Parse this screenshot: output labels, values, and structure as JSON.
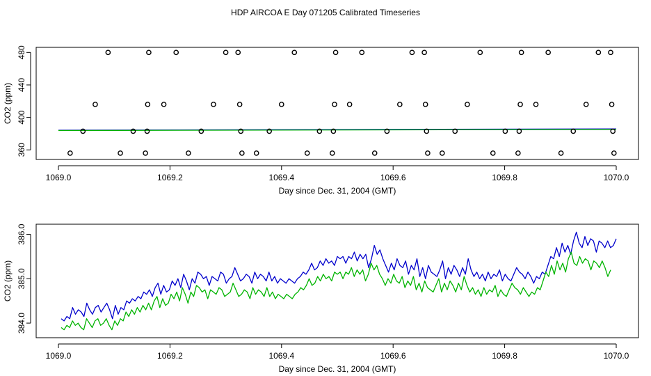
{
  "title": "HDP AIRCOA E  Day 071205  Calibrated Timeseries",
  "colors": {
    "blue": "#0000cc",
    "green": "#00b400",
    "axis": "#000000",
    "marker": "#000000"
  },
  "chart_data": [
    {
      "type": "scatter",
      "name": "upper-panel",
      "xlabel": "Day since Dec. 31, 2004 (GMT)",
      "ylabel": "CO2 (ppm)",
      "xlim": [
        1069.0,
        1070.0
      ],
      "ylim": [
        352.5,
        482.0
      ],
      "xticks": [
        1069.0,
        1069.2,
        1069.4,
        1069.6,
        1069.8,
        1070.0
      ],
      "xtick_labels": [
        "1069.0",
        "1069.2",
        "1069.4",
        "1069.6",
        "1069.8",
        "1070.0"
      ],
      "yticks": [
        360,
        400,
        440,
        480
      ],
      "ytick_labels": [
        "360",
        "400",
        "440",
        "480"
      ],
      "points": [
        {
          "x": 1069.021,
          "y": 356
        },
        {
          "x": 1069.044,
          "y": 383
        },
        {
          "x": 1069.066,
          "y": 416
        },
        {
          "x": 1069.089,
          "y": 480
        },
        {
          "x": 1069.111,
          "y": 356
        },
        {
          "x": 1069.134,
          "y": 383
        },
        {
          "x": 1069.156,
          "y": 356
        },
        {
          "x": 1069.159,
          "y": 383
        },
        {
          "x": 1069.16,
          "y": 416
        },
        {
          "x": 1069.162,
          "y": 480
        },
        {
          "x": 1069.189,
          "y": 416
        },
        {
          "x": 1069.211,
          "y": 480
        },
        {
          "x": 1069.233,
          "y": 356
        },
        {
          "x": 1069.256,
          "y": 383
        },
        {
          "x": 1069.278,
          "y": 416
        },
        {
          "x": 1069.3,
          "y": 480
        },
        {
          "x": 1069.322,
          "y": 480
        },
        {
          "x": 1069.325,
          "y": 416
        },
        {
          "x": 1069.327,
          "y": 383
        },
        {
          "x": 1069.329,
          "y": 356
        },
        {
          "x": 1069.355,
          "y": 356
        },
        {
          "x": 1069.378,
          "y": 383
        },
        {
          "x": 1069.4,
          "y": 416
        },
        {
          "x": 1069.423,
          "y": 480
        },
        {
          "x": 1069.446,
          "y": 356
        },
        {
          "x": 1069.468,
          "y": 383
        },
        {
          "x": 1069.491,
          "y": 356
        },
        {
          "x": 1069.493,
          "y": 383
        },
        {
          "x": 1069.495,
          "y": 416
        },
        {
          "x": 1069.497,
          "y": 480
        },
        {
          "x": 1069.522,
          "y": 416
        },
        {
          "x": 1069.544,
          "y": 480
        },
        {
          "x": 1069.567,
          "y": 356
        },
        {
          "x": 1069.589,
          "y": 383
        },
        {
          "x": 1069.612,
          "y": 416
        },
        {
          "x": 1069.634,
          "y": 480
        },
        {
          "x": 1069.656,
          "y": 480
        },
        {
          "x": 1069.658,
          "y": 416
        },
        {
          "x": 1069.66,
          "y": 383
        },
        {
          "x": 1069.662,
          "y": 356
        },
        {
          "x": 1069.688,
          "y": 356
        },
        {
          "x": 1069.711,
          "y": 383
        },
        {
          "x": 1069.733,
          "y": 416
        },
        {
          "x": 1069.756,
          "y": 480
        },
        {
          "x": 1069.779,
          "y": 356
        },
        {
          "x": 1069.801,
          "y": 383
        },
        {
          "x": 1069.824,
          "y": 356
        },
        {
          "x": 1069.826,
          "y": 383
        },
        {
          "x": 1069.828,
          "y": 416
        },
        {
          "x": 1069.83,
          "y": 480
        },
        {
          "x": 1069.856,
          "y": 416
        },
        {
          "x": 1069.878,
          "y": 480
        },
        {
          "x": 1069.901,
          "y": 356
        },
        {
          "x": 1069.923,
          "y": 383
        },
        {
          "x": 1069.946,
          "y": 416
        },
        {
          "x": 1069.968,
          "y": 480
        },
        {
          "x": 1069.99,
          "y": 480
        },
        {
          "x": 1069.992,
          "y": 416
        },
        {
          "x": 1069.994,
          "y": 383
        },
        {
          "x": 1069.996,
          "y": 356
        }
      ],
      "series": [
        {
          "name": "blue",
          "x": [
            1069.0,
            1070.0
          ],
          "values": [
            384.2,
            385.9
          ]
        },
        {
          "name": "green",
          "x": [
            1069.0,
            1070.0
          ],
          "values": [
            383.8,
            385.2
          ]
        }
      ]
    },
    {
      "type": "line",
      "name": "lower-panel",
      "xlabel": "Day since Dec. 31, 2004 (GMT)",
      "ylabel": "CO2 (ppm)",
      "xlim": [
        1069.0,
        1070.0
      ],
      "ylim": [
        383.75,
        386.15
      ],
      "xticks": [
        1069.0,
        1069.2,
        1069.4,
        1069.6,
        1069.8,
        1070.0
      ],
      "xtick_labels": [
        "1069.0",
        "1069.2",
        "1069.4",
        "1069.6",
        "1069.8",
        "1070.0"
      ],
      "yticks": [
        384.0,
        385.0,
        386.0
      ],
      "ytick_labels": [
        "384.0",
        "385.0",
        "386.0"
      ],
      "series": [
        {
          "name": "blue",
          "x_start": 1069.005,
          "x_end": 1070.0,
          "values": [
            384.1,
            384.05,
            384.15,
            384.1,
            384.35,
            384.2,
            384.3,
            384.25,
            384.15,
            384.45,
            384.3,
            384.2,
            384.35,
            384.4,
            384.25,
            384.35,
            384.45,
            384.3,
            384.1,
            384.4,
            384.2,
            384.35,
            384.3,
            384.5,
            384.45,
            384.55,
            384.5,
            384.6,
            384.55,
            384.7,
            384.65,
            384.75,
            384.6,
            384.8,
            384.9,
            384.65,
            384.85,
            384.7,
            384.75,
            384.95,
            384.85,
            385.0,
            384.8,
            385.1,
            384.95,
            384.75,
            385.0,
            384.9,
            385.15,
            385.1,
            385.0,
            385.05,
            384.85,
            385.05,
            385.0,
            384.95,
            385.15,
            385.1,
            384.9,
            385.0,
            385.05,
            385.25,
            385.1,
            384.95,
            385.0,
            385.1,
            385.05,
            384.9,
            385.15,
            385.0,
            385.1,
            385.05,
            384.95,
            385.15,
            384.95,
            385.05,
            384.9,
            385.0,
            384.95,
            384.9,
            385.0,
            384.95,
            384.9,
            385.0,
            385.05,
            385.15,
            385.1,
            385.2,
            385.35,
            385.2,
            385.25,
            385.4,
            385.3,
            385.45,
            385.35,
            385.4,
            385.3,
            385.5,
            385.45,
            385.5,
            385.35,
            385.5,
            385.45,
            385.6,
            385.4,
            385.55,
            385.45,
            385.55,
            385.25,
            385.45,
            385.75,
            385.55,
            385.65,
            385.45,
            385.3,
            385.15,
            385.35,
            385.2,
            385.45,
            385.3,
            385.25,
            385.4,
            385.1,
            385.3,
            385.2,
            385.45,
            385.05,
            385.25,
            385.0,
            385.3,
            385.15,
            385.1,
            385.05,
            385.2,
            385.4,
            385.0,
            385.25,
            385.1,
            385.3,
            385.2,
            385.05,
            385.25,
            385.1,
            385.45,
            385.2,
            385.05,
            385.15,
            385.0,
            385.1,
            384.95,
            385.15,
            385.0,
            385.1,
            385.05,
            385.2,
            384.95,
            385.1,
            385.0,
            384.95,
            385.1,
            385.25,
            385.15,
            385.1,
            385.0,
            385.15,
            385.05,
            384.9,
            385.05,
            385.0,
            385.15,
            385.1,
            385.3,
            385.5,
            385.45,
            385.7,
            385.5,
            385.8,
            385.6,
            385.75,
            385.55,
            385.85,
            386.05,
            385.8,
            385.7,
            385.95,
            385.75,
            385.9,
            385.85,
            385.6,
            385.85,
            385.8,
            385.7,
            385.85,
            385.7,
            385.75,
            385.9
          ]
        },
        {
          "name": "green",
          "x_start": 1069.005,
          "x_end": 1069.99,
          "values": [
            383.9,
            383.85,
            383.95,
            383.9,
            384.05,
            383.95,
            384.0,
            383.9,
            383.85,
            384.1,
            384.0,
            383.9,
            384.05,
            384.1,
            383.95,
            384.0,
            384.1,
            383.95,
            383.85,
            384.05,
            383.95,
            384.1,
            384.05,
            384.25,
            384.15,
            384.3,
            384.2,
            384.35,
            384.25,
            384.4,
            384.3,
            384.45,
            384.3,
            384.5,
            384.6,
            384.35,
            384.55,
            384.4,
            384.45,
            384.65,
            384.55,
            384.7,
            384.5,
            384.8,
            384.65,
            384.45,
            384.7,
            384.6,
            384.85,
            384.8,
            384.7,
            384.75,
            384.55,
            384.75,
            384.7,
            384.65,
            384.8,
            384.75,
            384.6,
            384.65,
            384.7,
            384.9,
            384.75,
            384.6,
            384.65,
            384.75,
            384.7,
            384.55,
            384.8,
            384.65,
            384.75,
            384.7,
            384.6,
            384.8,
            384.6,
            384.7,
            384.55,
            384.65,
            384.6,
            384.55,
            384.65,
            384.6,
            384.55,
            384.65,
            384.7,
            384.8,
            384.75,
            384.85,
            385.0,
            384.85,
            384.9,
            385.05,
            384.95,
            385.1,
            385.0,
            385.05,
            384.95,
            385.15,
            385.1,
            385.15,
            385.0,
            385.15,
            385.1,
            385.25,
            385.05,
            385.2,
            385.1,
            385.2,
            384.95,
            385.1,
            385.35,
            385.2,
            385.3,
            385.1,
            385.0,
            384.85,
            385.0,
            384.9,
            385.1,
            384.95,
            384.9,
            385.05,
            384.8,
            384.95,
            384.85,
            385.05,
            384.75,
            384.9,
            384.7,
            384.95,
            384.8,
            384.75,
            384.7,
            384.85,
            385.0,
            384.7,
            384.9,
            384.75,
            384.95,
            384.85,
            384.7,
            384.9,
            384.75,
            385.05,
            384.85,
            384.7,
            384.8,
            384.65,
            384.75,
            384.6,
            384.8,
            384.65,
            384.75,
            384.7,
            384.85,
            384.6,
            384.75,
            384.65,
            384.6,
            384.75,
            384.9,
            384.8,
            384.75,
            384.65,
            384.8,
            384.7,
            384.6,
            384.7,
            384.65,
            384.8,
            384.75,
            384.95,
            385.15,
            385.05,
            385.3,
            385.1,
            385.4,
            385.2,
            385.35,
            385.15,
            385.45,
            385.6,
            385.35,
            385.3,
            385.5,
            385.35,
            385.45,
            385.4,
            385.2,
            385.4,
            385.35,
            385.25,
            385.4,
            385.25,
            385.05,
            385.2
          ]
        }
      ]
    }
  ]
}
